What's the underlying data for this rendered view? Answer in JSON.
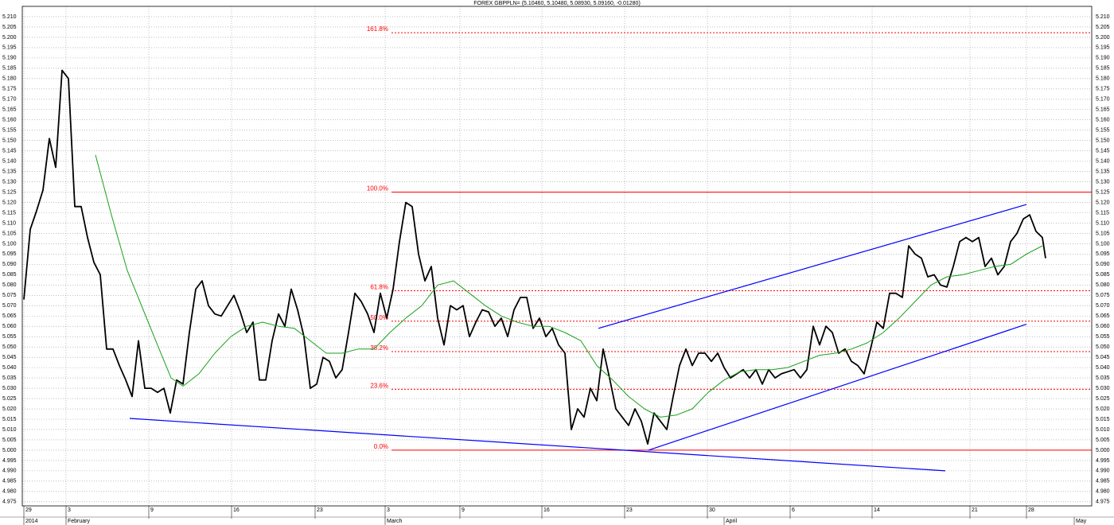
{
  "chart_data": {
    "type": "line",
    "title": "FOREX GBPPLN= (5.10460, 5.10480, 5.08930, 5.09160, -0.01280)",
    "xlim": [
      -0.5,
      335.5
    ],
    "xticks": [
      {
        "value": 0,
        "label": "29"
      },
      {
        "value": 13.25,
        "label": "3"
      },
      {
        "value": 39.25,
        "label": "9"
      },
      {
        "value": 65.25,
        "label": "16"
      },
      {
        "value": 91.5,
        "label": "23"
      },
      {
        "value": 113.5,
        "label": "3"
      },
      {
        "value": 137,
        "label": "9"
      },
      {
        "value": 162.75,
        "label": "16"
      },
      {
        "value": 188.75,
        "label": "23"
      },
      {
        "value": 214.75,
        "label": "30"
      },
      {
        "value": 240.75,
        "label": "6"
      },
      {
        "value": 266.5,
        "label": "14"
      },
      {
        "value": 297.25,
        "label": "21"
      },
      {
        "value": 315,
        "label": "28"
      }
    ],
    "month_ticks": [
      {
        "value": 0,
        "label": "2014"
      },
      {
        "value": 13.25,
        "label": "February"
      },
      {
        "value": 113.5,
        "label": "March"
      },
      {
        "value": 220,
        "label": "April"
      },
      {
        "value": 330,
        "label": "May"
      }
    ],
    "ylim": [
      4.973,
      5.215
    ],
    "yticks": [
      4.975,
      {
        "value": 4.98,
        "label": "4.980"
      },
      4.985,
      {
        "value": 4.99,
        "label": "4.990"
      },
      4.995,
      {
        "value": 5,
        "label": "5.000"
      },
      5.005,
      {
        "value": 5.01,
        "label": "5.010"
      },
      5.015,
      {
        "value": 5.02,
        "label": "5.020"
      },
      5.025,
      {
        "value": 5.03,
        "label": "5.030"
      },
      5.035,
      {
        "value": 5.04,
        "label": "5.040"
      },
      5.045,
      {
        "value": 5.05,
        "label": "5.050"
      },
      5.055,
      {
        "value": 5.06,
        "label": "5.060"
      },
      5.065,
      {
        "value": 5.07,
        "label": "5.070"
      },
      5.075,
      {
        "value": 5.08,
        "label": "5.080"
      },
      5.085,
      {
        "value": 5.09,
        "label": "5.090"
      },
      5.095,
      {
        "value": 5.1,
        "label": "5.100"
      },
      5.105,
      {
        "value": 5.11,
        "label": "5.110"
      },
      5.115,
      {
        "value": 5.12,
        "label": "5.120"
      },
      5.125,
      {
        "value": 5.13,
        "label": "5.130"
      },
      5.135,
      {
        "value": 5.14,
        "label": "5.140"
      },
      5.145,
      {
        "value": 5.15,
        "label": "5.150"
      },
      5.155,
      {
        "value": 5.16,
        "label": "5.160"
      },
      5.165,
      {
        "value": 5.17,
        "label": "5.170"
      },
      5.175,
      {
        "value": 5.18,
        "label": "5.180"
      },
      5.185,
      {
        "value": 5.19,
        "label": "5.190"
      },
      5.195,
      {
        "value": 5.2,
        "label": "5.200"
      },
      5.205,
      {
        "value": 5.21,
        "label": "5.210"
      }
    ],
    "grid": true,
    "series": [
      {
        "color": "#000000",
        "x": [
          0,
          2,
          4,
          6,
          8,
          10,
          12,
          14,
          16,
          18,
          20,
          22,
          24,
          26,
          28,
          30,
          32,
          34,
          36,
          38,
          40,
          42,
          44,
          46,
          48,
          50,
          52,
          54,
          56,
          58,
          60,
          62,
          64,
          66,
          68,
          70,
          72,
          74,
          76,
          78,
          80,
          82,
          84,
          86,
          88,
          90,
          92,
          94,
          96,
          98,
          100,
          102,
          104,
          106,
          108,
          110,
          112,
          114,
          116,
          118,
          120,
          122,
          124,
          126,
          128,
          130,
          132,
          134,
          136,
          138,
          140,
          142,
          144,
          146,
          148,
          150,
          152,
          154,
          156,
          158,
          160,
          162,
          164,
          166,
          168,
          170,
          172,
          174,
          176,
          178,
          180,
          182,
          184,
          186,
          188,
          190,
          192,
          194,
          196,
          198,
          200,
          202,
          204,
          206,
          208,
          210,
          212,
          214,
          216,
          218,
          220,
          222,
          224,
          226,
          228,
          230,
          232,
          234,
          236,
          238,
          240,
          242,
          244,
          246,
          248,
          250,
          252,
          254,
          256,
          258,
          260,
          262,
          264,
          266,
          268,
          270,
          272,
          274,
          276,
          278,
          280,
          282,
          284,
          286,
          288,
          290,
          292,
          294,
          296,
          298,
          300,
          302,
          304,
          306,
          308,
          310,
          312,
          314,
          316,
          318,
          320,
          321
        ],
        "values": [
          5.073,
          5.107,
          5.116,
          5.126,
          5.151,
          5.137,
          5.184,
          5.18,
          5.118,
          5.118,
          5.103,
          5.091,
          5.085,
          5.049,
          5.049,
          5.041,
          5.034,
          5.026,
          5.053,
          5.03,
          5.03,
          5.028,
          5.03,
          5.018,
          5.034,
          5.032,
          5.057,
          5.078,
          5.082,
          5.07,
          5.066,
          5.065,
          5.07,
          5.075,
          5.067,
          5.057,
          5.062,
          5.034,
          5.034,
          5.053,
          5.066,
          5.06,
          5.078,
          5.068,
          5.055,
          5.03,
          5.032,
          5.045,
          5.043,
          5.035,
          5.039,
          5.057,
          5.076,
          5.072,
          5.066,
          5.057,
          5.076,
          5.064,
          5.078,
          5.101,
          5.12,
          5.118,
          5.095,
          5.082,
          5.089,
          5.064,
          5.051,
          5.07,
          5.068,
          5.07,
          5.055,
          5.062,
          5.068,
          5.067,
          5.06,
          5.064,
          5.055,
          5.068,
          5.074,
          5.074,
          5.059,
          5.064,
          5.055,
          5.059,
          5.051,
          5.047,
          5.01,
          5.02,
          5.016,
          5.03,
          5.024,
          5.049,
          5.035,
          5.02,
          5.016,
          5.012,
          5.02,
          5.014,
          5.003,
          5.018,
          5.014,
          5.01,
          5.026,
          5.041,
          5.049,
          5.041,
          5.047,
          5.047,
          5.043,
          5.047,
          5.04,
          5.035,
          5.037,
          5.039,
          5.035,
          5.039,
          5.032,
          5.039,
          5.035,
          5.037,
          5.038,
          5.039,
          5.035,
          5.039,
          5.06,
          5.051,
          5.06,
          5.057,
          5.047,
          5.049,
          5.043,
          5.041,
          5.037,
          5.049,
          5.062,
          5.059,
          5.076,
          5.076,
          5.074,
          5.099,
          5.095,
          5.093,
          5.084,
          5.085,
          5.08,
          5.079,
          5.089,
          5.101,
          5.103,
          5.101,
          5.103,
          5.089,
          5.093,
          5.085,
          5.089,
          5.101,
          5.105,
          5.112,
          5.114,
          5.106,
          5.103,
          5.093
        ]
      },
      {
        "color": "#1aa01a",
        "x": [
          22.5,
          27.5,
          32.5,
          37.5,
          42.5,
          46.25,
          50,
          55,
          60,
          65,
          70,
          75,
          80,
          85,
          90,
          95,
          100,
          105,
          110,
          115,
          120,
          125,
          130,
          135,
          140,
          145,
          150,
          155,
          160,
          165,
          170,
          175,
          180,
          185,
          190,
          195,
          200,
          205,
          210,
          215,
          220,
          225,
          230,
          235,
          240,
          245,
          250,
          255,
          260,
          265,
          270,
          275,
          280,
          285,
          290,
          295,
          300,
          305,
          310,
          315,
          320
        ],
        "values": [
          5.143,
          5.114,
          5.087,
          5.068,
          5.049,
          5.035,
          5.031,
          5.037,
          5.047,
          5.055,
          5.06,
          5.062,
          5.06,
          5.059,
          5.053,
          5.047,
          5.047,
          5.049,
          5.049,
          5.057,
          5.064,
          5.07,
          5.08,
          5.082,
          5.076,
          5.07,
          5.065,
          5.062,
          5.06,
          5.06,
          5.057,
          5.053,
          5.041,
          5.034,
          5.026,
          5.02,
          5.016,
          5.017,
          5.02,
          5.028,
          5.034,
          5.038,
          5.039,
          5.039,
          5.04,
          5.043,
          5.046,
          5.047,
          5.049,
          5.052,
          5.057,
          5.064,
          5.072,
          5.08,
          5.084,
          5.085,
          5.087,
          5.089,
          5.09,
          5.095,
          5.099
        ]
      }
    ],
    "trend_lines": [
      {
        "color": "#0000ff",
        "x": [
          33.25,
          289.5
        ],
        "values": [
          5.0154,
          4.99
        ]
      },
      {
        "color": "#0000ff",
        "x": [
          196.25,
          315
        ],
        "values": [
          5.0,
          5.061
        ]
      },
      {
        "color": "#0000ff",
        "x": [
          180.5,
          315
        ],
        "values": [
          5.059,
          5.119
        ]
      }
    ],
    "fib_color": "#ff0000",
    "fib_start": 115.5,
    "fib_levels": [
      {
        "name": "161.8%",
        "value": 5.20225,
        "style": "dotted"
      },
      {
        "name": "100.0%",
        "value": 5.125,
        "style": "solid"
      },
      {
        "name": "61.8%",
        "value": 5.07725,
        "style": "dotted"
      },
      {
        "name": "50.0%",
        "value": 5.0625,
        "style": "dotted"
      },
      {
        "name": "38.2%",
        "value": 5.04775,
        "style": "dotted"
      },
      {
        "name": "23.6%",
        "value": 5.0295,
        "style": "dotted"
      },
      {
        "name": "0.0%",
        "value": 5.0,
        "style": "solid"
      }
    ]
  }
}
